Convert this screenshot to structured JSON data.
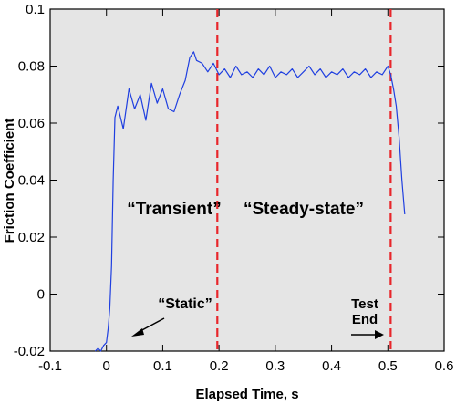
{
  "chart_data": {
    "type": "line",
    "title": "",
    "xlabel": "Elapsed Time, s",
    "ylabel": "Friction Coefficient",
    "xlim": [
      -0.1,
      0.6
    ],
    "ylim": [
      -0.02,
      0.1
    ],
    "x_ticks": [
      "-0.1",
      "0",
      "0.1",
      "0.2",
      "0.3",
      "0.4",
      "0.5",
      "0.6"
    ],
    "y_ticks": [
      "-0.02",
      "0",
      "0.02",
      "0.04",
      "0.06",
      "0.08",
      "0.1"
    ],
    "grid": false,
    "background": "#e5e5e5",
    "line_color": "#1f3fe0",
    "marker_line_color": "#e8262b",
    "vertical_markers": [
      {
        "x": 0.197
      },
      {
        "x": 0.505
      }
    ],
    "regions": [
      {
        "label": "“Transient”"
      },
      {
        "label": "“Steady-state”"
      }
    ],
    "annotations": [
      {
        "text": "“Static”"
      },
      {
        "text": "Test End"
      }
    ],
    "series": [
      {
        "x": [
          -0.02,
          -0.015,
          -0.01,
          -0.005,
          0.0,
          0.003,
          0.006,
          0.009,
          0.012,
          0.015,
          0.02,
          0.03,
          0.04,
          0.05,
          0.06,
          0.07,
          0.08,
          0.09,
          0.1,
          0.11,
          0.12,
          0.13,
          0.14,
          0.148,
          0.155,
          0.16,
          0.17,
          0.18,
          0.19,
          0.2,
          0.21,
          0.22,
          0.23,
          0.24,
          0.25,
          0.26,
          0.27,
          0.28,
          0.29,
          0.3,
          0.31,
          0.32,
          0.33,
          0.34,
          0.35,
          0.36,
          0.37,
          0.38,
          0.39,
          0.4,
          0.41,
          0.42,
          0.43,
          0.44,
          0.45,
          0.46,
          0.47,
          0.48,
          0.49,
          0.5,
          0.505,
          0.51,
          0.515,
          0.52,
          0.525,
          0.53
        ],
        "y": [
          -0.02,
          -0.019,
          -0.02,
          -0.018,
          -0.017,
          -0.012,
          -0.005,
          0.01,
          0.04,
          0.062,
          0.066,
          0.058,
          0.072,
          0.065,
          0.07,
          0.061,
          0.074,
          0.067,
          0.072,
          0.065,
          0.064,
          0.07,
          0.075,
          0.083,
          0.085,
          0.082,
          0.081,
          0.078,
          0.081,
          0.077,
          0.079,
          0.076,
          0.08,
          0.077,
          0.078,
          0.076,
          0.079,
          0.077,
          0.08,
          0.076,
          0.078,
          0.077,
          0.079,
          0.076,
          0.078,
          0.08,
          0.077,
          0.079,
          0.076,
          0.078,
          0.077,
          0.079,
          0.076,
          0.078,
          0.077,
          0.079,
          0.076,
          0.078,
          0.077,
          0.08,
          0.077,
          0.072,
          0.066,
          0.055,
          0.04,
          0.028
        ]
      }
    ]
  }
}
